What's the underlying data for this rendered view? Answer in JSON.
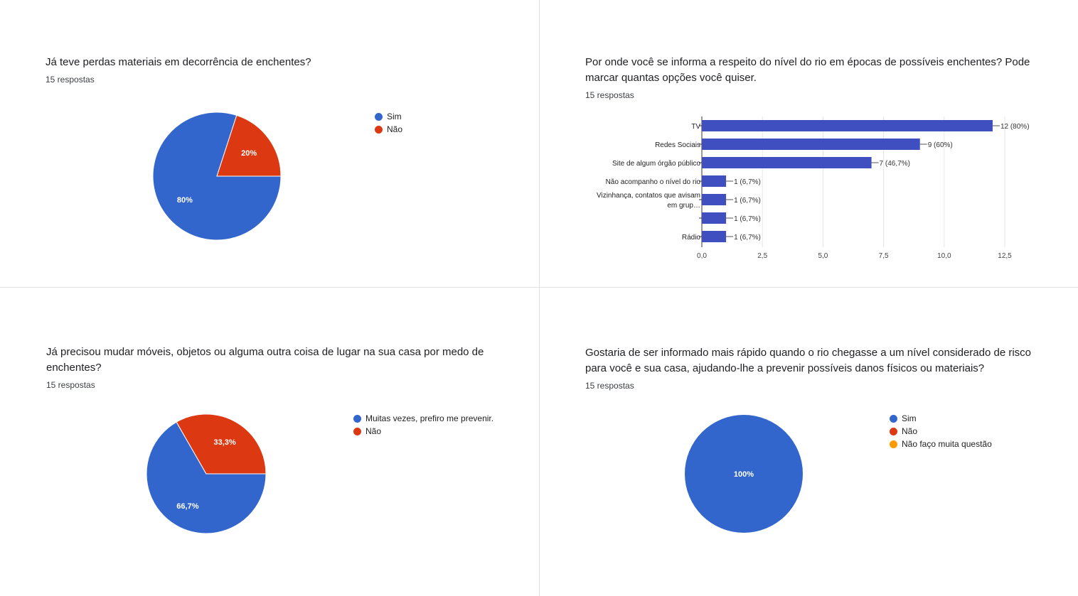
{
  "questions": [
    {
      "title": "Já teve perdas materiais em decorrência de enchentes?",
      "responses": "15 respostas",
      "legend": [
        "Sim",
        "Não"
      ],
      "colors": [
        "#3366cc",
        "#dc3912"
      ]
    },
    {
      "title": "Por onde você se informa a respeito do nível do rio em épocas de possíveis enchentes? Pode marcar quantas opções você quiser.",
      "responses": "15 respostas"
    },
    {
      "title": "Já precisou mudar móveis, objetos ou alguma outra coisa de lugar na sua casa por medo de enchentes?",
      "responses": "15 respostas",
      "legend": [
        "Muitas vezes, prefiro me prevenir.",
        "Não"
      ],
      "colors": [
        "#3366cc",
        "#dc3912"
      ]
    },
    {
      "title": "Gostaria de ser informado mais rápido quando o rio chegasse a um nível considerado de risco para você e sua casa, ajudando-lhe a prevenir possíveis danos físicos ou materiais?",
      "responses": "15 respostas",
      "legend": [
        "Sim",
        "Não",
        "Não faço muita questão"
      ],
      "colors": [
        "#3366cc",
        "#dc3912",
        "#ff9900"
      ]
    }
  ],
  "chart_data": [
    {
      "type": "pie",
      "title": "Já teve perdas materiais em decorrência de enchentes?",
      "categories": [
        "Sim",
        "Não"
      ],
      "values": [
        80,
        20
      ],
      "labels": [
        "80%",
        "20%"
      ],
      "legend_position": "right"
    },
    {
      "type": "bar",
      "orientation": "horizontal",
      "title": "Por onde você se informa a respeito do nível do rio em épocas de possíveis enchentes? Pode marcar quantas opções você quiser.",
      "categories": [
        "TV",
        "Redes Sociais",
        "Site de algum órgão público",
        "Não acompanho o nível do rio",
        "Vizinhança, contatos que avisam em grup…",
        "",
        "Rádio"
      ],
      "category_lines": [
        [
          "TV"
        ],
        [
          "Redes Sociais"
        ],
        [
          "Site de algum órgão público"
        ],
        [
          "Não acompanho o nível do rio"
        ],
        [
          "Vizinhança, contatos que avisam",
          "em grup…"
        ],
        [
          ""
        ],
        [
          "Rádio"
        ]
      ],
      "values": [
        12,
        9,
        7,
        1,
        1,
        1,
        1
      ],
      "labels": [
        "12 (80%)",
        "9 (60%)",
        "7 (46,7%)",
        "1 (6,7%)",
        "1 (6,7%)",
        "1 (6,7%)",
        "1 (6,7%)"
      ],
      "xlim": [
        0,
        12.5
      ],
      "xticks": [
        0,
        2.5,
        5,
        7.5,
        10,
        12.5
      ],
      "xtick_labels": [
        "0,0",
        "2,5",
        "5,0",
        "7,5",
        "10,0",
        "12,5"
      ],
      "color": "#3f4fbf",
      "grid": true
    },
    {
      "type": "pie",
      "title": "Já precisou mudar móveis, objetos ou alguma outra coisa de lugar na sua casa por medo de enchentes?",
      "categories": [
        "Muitas vezes, prefiro me prevenir.",
        "Não"
      ],
      "values": [
        66.7,
        33.3
      ],
      "labels": [
        "66,7%",
        "33,3%"
      ],
      "legend_position": "right"
    },
    {
      "type": "pie",
      "title": "Gostaria de ser informado mais rápido quando o rio chegasse a um nível considerado de risco para você e sua casa, ajudando-lhe a prevenir possíveis danos físicos ou materiais?",
      "categories": [
        "Sim",
        "Não",
        "Não faço muita questão"
      ],
      "values": [
        100,
        0,
        0
      ],
      "labels": [
        "100%",
        "",
        ""
      ],
      "legend_position": "right"
    }
  ]
}
